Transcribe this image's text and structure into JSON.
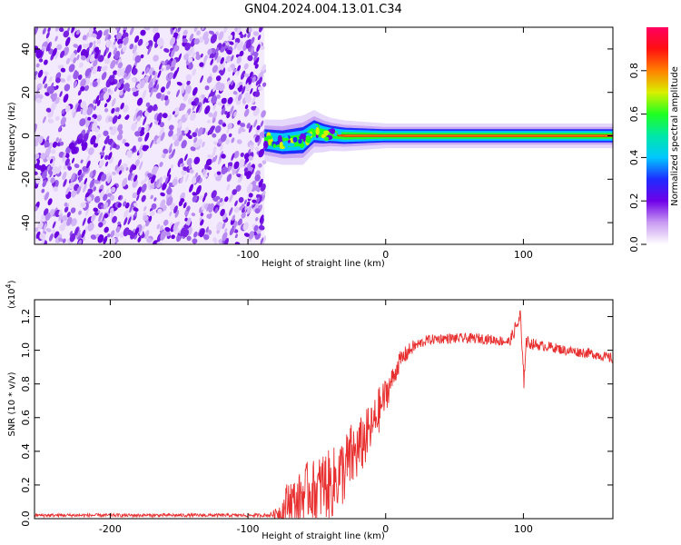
{
  "chart_data": [
    {
      "type": "heatmap",
      "title": "GN04.2024.004.13.01.C34",
      "xlabel": "Height of straight line (km)",
      "ylabel": "Frequency (Hz)",
      "xlim": [
        -255,
        165
      ],
      "ylim": [
        -50,
        50
      ],
      "x_ticks": [
        -200,
        -100,
        0,
        100
      ],
      "y_ticks": [
        -40,
        -20,
        0,
        20,
        40
      ],
      "noise_region_x": [
        -255,
        -88
      ],
      "signal_band": {
        "frequency_hz": 0,
        "start_km": -88,
        "end_km": 165,
        "centerline": [
          [
            -88,
            -2
          ],
          [
            -75,
            -3
          ],
          [
            -60,
            -2
          ],
          [
            -52,
            2
          ],
          [
            -45,
            1
          ],
          [
            -30,
            0
          ],
          [
            0,
            0
          ],
          [
            165,
            0
          ]
        ],
        "halfwidth_hz": [
          [
            -88,
            5
          ],
          [
            -60,
            6
          ],
          [
            -40,
            4
          ],
          [
            0,
            3
          ],
          [
            100,
            3
          ],
          [
            165,
            3
          ]
        ]
      },
      "colorbar": {
        "label": "Normalized spectral amplitude",
        "ticks": [
          0.0,
          0.2,
          0.4,
          0.6,
          0.8
        ],
        "range": [
          0,
          1
        ],
        "colors": [
          "#ffffff",
          "#c99bf2",
          "#6f00e8",
          "#1f2bff",
          "#00c8ff",
          "#00e8a8",
          "#20ff20",
          "#d8f000",
          "#ff8000",
          "#ff1010",
          "#ff0060"
        ]
      }
    },
    {
      "type": "line",
      "xlabel": "Height of straight line (km)",
      "ylabel": "SNR (10 * v/v)",
      "y_scale_note": "(x10",
      "y_scale_exp": "4",
      "xlim": [
        -255,
        165
      ],
      "ylim": [
        0.0,
        1.3
      ],
      "x_ticks": [
        -200,
        -100,
        0,
        100
      ],
      "y_ticks": [
        0.0,
        0.2,
        0.4,
        0.6,
        0.8,
        1.0,
        1.2
      ],
      "series_color": "#e83030",
      "series": [
        {
          "x": [
            -255,
            -200,
            -150,
            -100,
            -90,
            -85,
            -80,
            -75,
            -70,
            -65,
            -60,
            -55,
            -50,
            -45,
            -40,
            -35,
            -30,
            -25,
            -20,
            -15,
            -10,
            -5,
            0,
            5,
            10,
            15,
            20,
            25,
            30,
            40,
            50,
            60,
            70,
            80,
            90,
            98,
            100,
            102,
            110,
            120,
            130,
            140,
            150,
            160,
            165
          ],
          "y": [
            0.02,
            0.02,
            0.02,
            0.02,
            0.02,
            0.02,
            0.03,
            0.08,
            0.18,
            0.15,
            0.22,
            0.25,
            0.24,
            0.3,
            0.28,
            0.34,
            0.38,
            0.45,
            0.48,
            0.55,
            0.6,
            0.7,
            0.78,
            0.86,
            0.93,
            0.98,
            1.02,
            1.04,
            1.06,
            1.07,
            1.07,
            1.07,
            1.07,
            1.06,
            1.05,
            1.2,
            0.85,
            1.05,
            1.03,
            1.02,
            1.0,
            0.99,
            0.98,
            0.96,
            0.95
          ],
          "noise_spread": [
            0.01,
            0.01,
            0.01,
            0.01,
            0.01,
            0.01,
            0.03,
            0.15,
            0.2,
            0.2,
            0.25,
            0.25,
            0.28,
            0.3,
            0.3,
            0.3,
            0.3,
            0.3,
            0.25,
            0.25,
            0.2,
            0.2,
            0.15,
            0.1,
            0.06,
            0.05,
            0.04,
            0.03,
            0.03,
            0.03,
            0.03,
            0.03,
            0.03,
            0.03,
            0.03,
            0.06,
            0.15,
            0.04,
            0.03,
            0.03,
            0.03,
            0.03,
            0.03,
            0.03,
            0.03
          ]
        }
      ]
    }
  ]
}
